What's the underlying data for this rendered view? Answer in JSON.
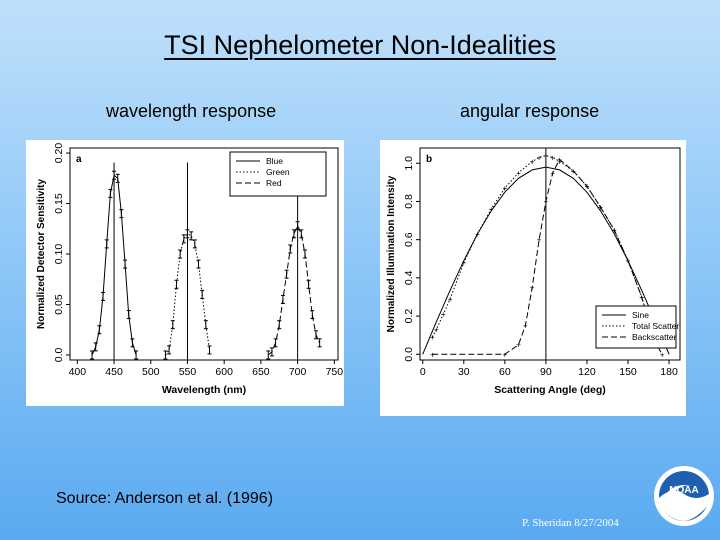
{
  "slide": {
    "title": "TSI Nephelometer Non-Idealities",
    "left_subtitle": "wavelength response",
    "right_subtitle": "angular response",
    "source": "Source:  Anderson et al. (1996)",
    "credit": "P. Sheridan  8/27/2004",
    "logo_text": "NOAA"
  },
  "chart_data": [
    {
      "type": "line",
      "panel_label": "a",
      "xlabel": "Wavelength (nm)",
      "ylabel": "Normalized Detector Sensitivity",
      "xlim": [
        390,
        755
      ],
      "ylim": [
        -0.005,
        0.205
      ],
      "xticks": [
        400,
        450,
        500,
        550,
        600,
        650,
        700,
        750
      ],
      "yticks": [
        0.0,
        0.05,
        0.1,
        0.15,
        0.2
      ],
      "ytick_labels": [
        "0.0",
        "0.05",
        "0.10",
        "0.15",
        "0.20"
      ],
      "legend_position": "top-right",
      "series": [
        {
          "name": "Blue",
          "x": [
            420,
            425,
            430,
            435,
            440,
            445,
            450,
            455,
            460,
            465,
            470,
            475,
            480
          ],
          "y": [
            0.0,
            0.008,
            0.025,
            0.058,
            0.11,
            0.16,
            0.178,
            0.175,
            0.14,
            0.09,
            0.04,
            0.012,
            0.0
          ],
          "center": 450
        },
        {
          "name": "Green",
          "x": [
            520,
            525,
            530,
            535,
            540,
            545,
            550,
            555,
            560,
            565,
            570,
            575,
            580
          ],
          "y": [
            0.0,
            0.005,
            0.03,
            0.07,
            0.1,
            0.115,
            0.12,
            0.118,
            0.11,
            0.09,
            0.06,
            0.03,
            0.005
          ],
          "center": 550
        },
        {
          "name": "Red",
          "x": [
            660,
            665,
            670,
            675,
            680,
            685,
            690,
            695,
            700,
            705,
            710,
            715,
            720,
            725,
            730
          ],
          "y": [
            0.0,
            0.003,
            0.012,
            0.03,
            0.055,
            0.08,
            0.105,
            0.12,
            0.128,
            0.12,
            0.1,
            0.07,
            0.04,
            0.02,
            0.012
          ],
          "center": 700
        }
      ]
    },
    {
      "type": "line",
      "panel_label": "b",
      "xlabel": "Scattering Angle (deg)",
      "ylabel": "Normalized Illumination Intensity",
      "xlim": [
        -2,
        188
      ],
      "ylim": [
        -0.03,
        1.08
      ],
      "xticks": [
        0,
        30,
        60,
        90,
        120,
        150,
        180
      ],
      "yticks": [
        0.0,
        0.2,
        0.4,
        0.6,
        0.8,
        1.0
      ],
      "ytick_labels": [
        "0.0",
        "0.2",
        "0.4",
        "0.6",
        "0.8",
        "1.0"
      ],
      "legend_position": "bottom-right",
      "series": [
        {
          "name": "Sine",
          "x": [
            0,
            10,
            20,
            30,
            40,
            50,
            60,
            70,
            80,
            90,
            100,
            110,
            120,
            130,
            140,
            150,
            160,
            170,
            180
          ],
          "y": [
            0.0,
            0.174,
            0.342,
            0.5,
            0.643,
            0.766,
            0.866,
            0.94,
            0.985,
            1.0,
            0.985,
            0.94,
            0.866,
            0.766,
            0.643,
            0.5,
            0.342,
            0.174,
            0.0
          ],
          "scale": 0.98
        },
        {
          "name": "Total Scatter",
          "x": [
            7,
            10,
            15,
            20,
            30,
            40,
            50,
            60,
            70,
            80,
            85,
            90,
            95,
            100,
            110,
            120,
            130,
            140,
            150,
            160,
            165,
            170
          ],
          "y": [
            0.09,
            0.13,
            0.21,
            0.29,
            0.48,
            0.63,
            0.76,
            0.87,
            0.95,
            1.01,
            1.03,
            1.04,
            1.03,
            1.01,
            0.96,
            0.88,
            0.77,
            0.65,
            0.49,
            0.3,
            0.18,
            0.06
          ]
        },
        {
          "name": "Backscatter",
          "x": [
            7,
            60,
            70,
            75,
            80,
            85,
            90,
            95,
            100,
            110,
            120,
            130,
            140,
            150,
            160,
            165,
            170,
            175
          ],
          "y": [
            0.0,
            0.0,
            0.05,
            0.15,
            0.35,
            0.6,
            0.8,
            0.95,
            1.02,
            0.96,
            0.88,
            0.77,
            0.65,
            0.49,
            0.3,
            0.18,
            0.06,
            0.0
          ]
        }
      ]
    }
  ]
}
